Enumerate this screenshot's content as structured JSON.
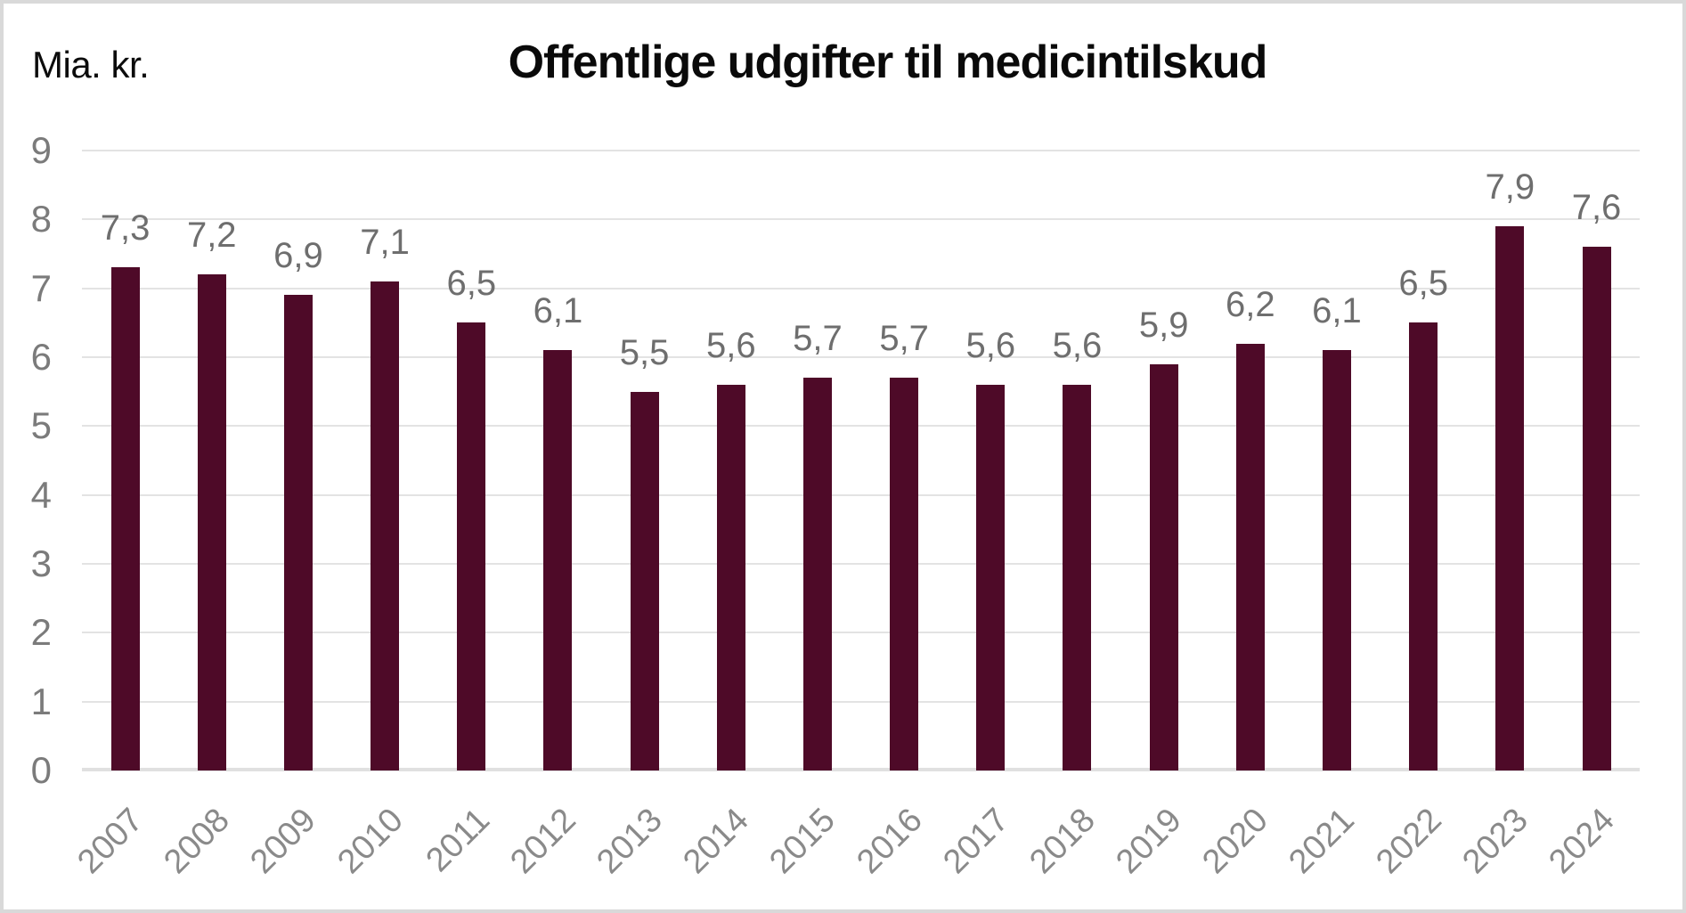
{
  "frame": {
    "background": "#ffffff",
    "border_color": "#d9d9d9"
  },
  "header": {
    "unit_label": "Mia. kr.",
    "title": "Offentlige udgifter til medicintilskud"
  },
  "chart_data": {
    "type": "bar",
    "title": "Offentlige udgifter til medicintilskud",
    "ylabel": "Mia. kr.",
    "xlabel": "",
    "categories": [
      "2007",
      "2008",
      "2009",
      "2010",
      "2011",
      "2012",
      "2013",
      "2014",
      "2015",
      "2016",
      "2017",
      "2018",
      "2019",
      "2020",
      "2021",
      "2022",
      "2023",
      "2024"
    ],
    "values": [
      7.3,
      7.2,
      6.9,
      7.1,
      6.5,
      6.1,
      5.5,
      5.6,
      5.7,
      5.7,
      5.6,
      5.6,
      5.9,
      6.2,
      6.1,
      6.5,
      7.9,
      7.6
    ],
    "value_labels": [
      "7,3",
      "7,2",
      "6,9",
      "7,1",
      "6,5",
      "6,1",
      "5,5",
      "5,6",
      "5,7",
      "5,7",
      "5,6",
      "5,6",
      "5,9",
      "6,2",
      "6,1",
      "6,5",
      "7,9",
      "7,6"
    ],
    "ylim": [
      0,
      9
    ],
    "y_ticks": [
      0,
      1,
      2,
      3,
      4,
      5,
      6,
      7,
      8,
      9
    ],
    "grid": "horizontal",
    "legend": "none",
    "decimal_separator": ",",
    "colors": {
      "bar": "#4E0A28",
      "gridline": "#e3e3e3",
      "baseline": "#e0e0e0",
      "tick_label": "#7b7b7b",
      "value_label": "#6e6e6e",
      "category_label": "#8a8a8a",
      "title": "#0a0a0a"
    }
  }
}
